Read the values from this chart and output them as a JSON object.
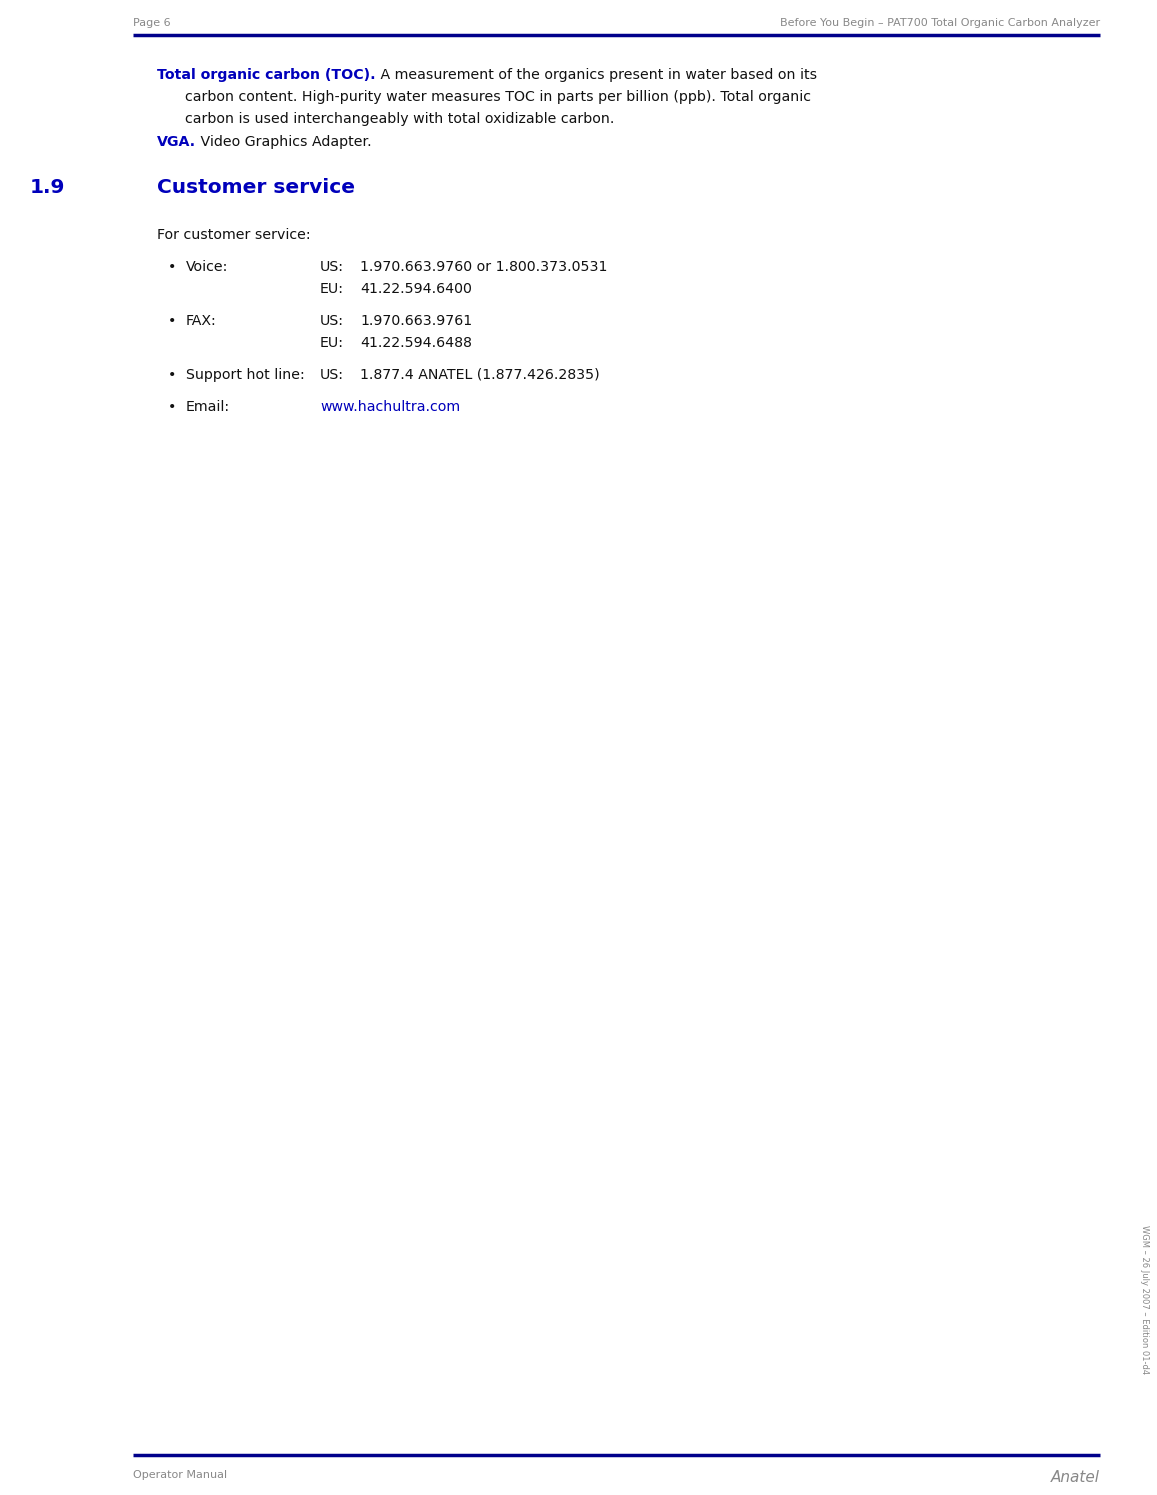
{
  "page_header_left": "Page 6",
  "page_header_right": "Before You Begin – PAT700 Total Organic Carbon Analyzer",
  "page_footer_left": "Operator Manual",
  "page_footer_right": "Anatel",
  "line_color": "#00008B",
  "gray_color": "#888888",
  "blue_color": "#0000BB",
  "black_color": "#111111",
  "section_number": "1.9",
  "section_title": "Customer service",
  "toc_bold": "Total organic carbon (TOC).",
  "toc_line1_rest": " A measurement of the organics present in water based on its",
  "toc_line2": "carbon content. High-purity water measures TOC in parts per billion (ppb). Total organic",
  "toc_line3": "carbon is used interchangeably with total oxidizable carbon.",
  "vga_bold": "VGA.",
  "vga_rest": " Video Graphics Adapter.",
  "intro_text": "For customer service:",
  "sidebar_text": "WGM – 26 July 2007 – Edition 01-d4",
  "bullet_items": [
    {
      "label": "Voice:",
      "lines": [
        {
          "prefix": "US:",
          "value": "1.970.663.9760 or 1.800.373.0531",
          "is_link": false
        },
        {
          "prefix": "EU:",
          "value": "41.22.594.6400",
          "is_link": false
        }
      ]
    },
    {
      "label": "FAX:",
      "lines": [
        {
          "prefix": "US:",
          "value": "1.970.663.9761",
          "is_link": false
        },
        {
          "prefix": "EU:",
          "value": "41.22.594.6488",
          "is_link": false
        }
      ]
    },
    {
      "label": "Support hot line:",
      "lines": [
        {
          "prefix": "US:",
          "value": "1.877.4 ANATEL (1.877.426.2835)",
          "is_link": false
        }
      ]
    },
    {
      "label": "Email:",
      "lines": [
        {
          "prefix": "",
          "value": "www.hachultra.com",
          "is_link": true
        }
      ]
    }
  ]
}
